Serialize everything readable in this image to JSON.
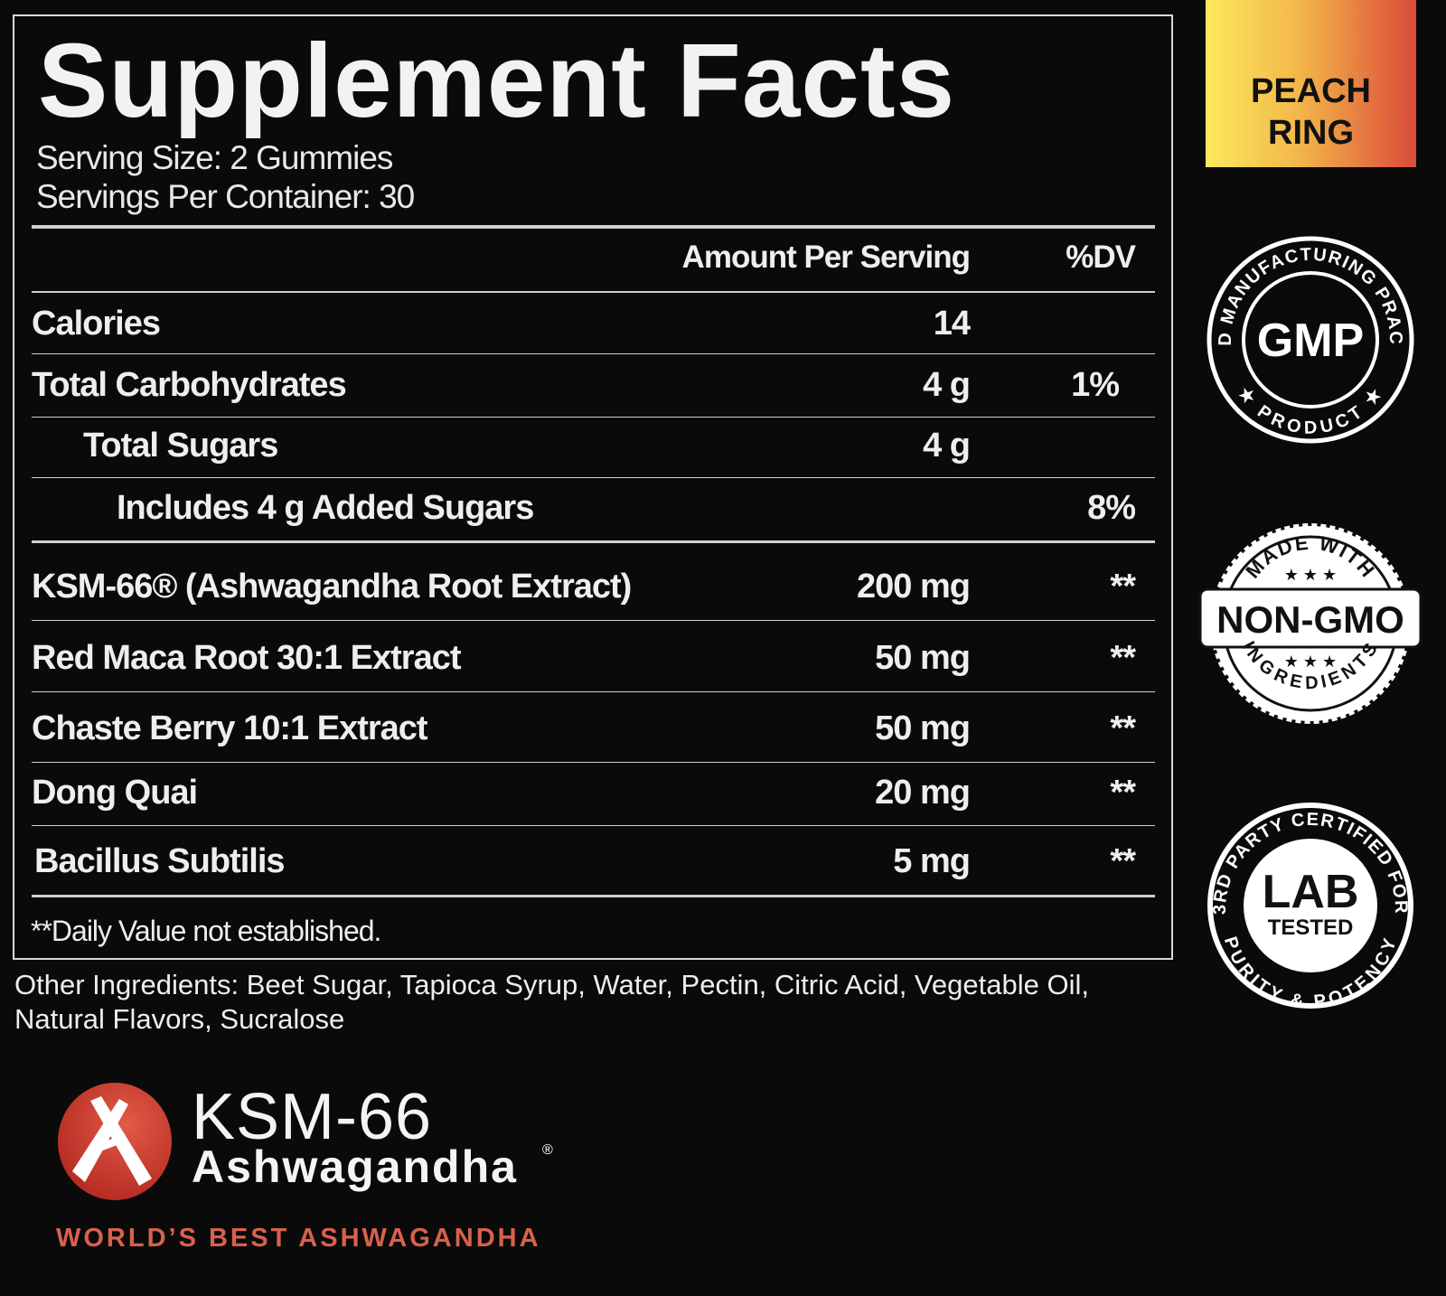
{
  "title": "Supplement Facts",
  "serving_size": "Serving Size: 2 Gummies",
  "servings_per_container": "Servings Per Container: 30",
  "header": {
    "amount": "Amount Per Serving",
    "dv": "%DV"
  },
  "rows": [
    {
      "label": "Calories",
      "amount": "14",
      "dv": ""
    },
    {
      "label": "Total Carbohydrates",
      "amount": "4 g",
      "dv": "1%"
    },
    {
      "label": "Total Sugars",
      "amount": "4 g",
      "dv": ""
    },
    {
      "label": "Includes 4 g Added Sugars",
      "amount": "",
      "dv": "8%"
    },
    {
      "label": "KSM-66® (Ashwagandha Root Extract)",
      "amount": "200 mg",
      "dv": "**"
    },
    {
      "label": "Red Maca Root 30:1 Extract",
      "amount": "50 mg",
      "dv": "**"
    },
    {
      "label": "Chaste Berry 10:1 Extract",
      "amount": "50 mg",
      "dv": "**"
    },
    {
      "label": "Dong Quai",
      "amount": "20 mg",
      "dv": "**"
    },
    {
      "label": "Bacillus Subtilis",
      "amount": "5 mg",
      "dv": "**"
    }
  ],
  "footnote": "**Daily Value not established.",
  "other_ingredients": [
    "Other Ingredients: Beet Sugar, Tapioca Syrup, Water, Pectin, Citric Acid, Vegetable Oil,",
    "Natural Flavors, Sucralose"
  ],
  "flavor": [
    "PEACH",
    "RING"
  ],
  "flavor_colors": [
    "#fde85c",
    "#d94c3a"
  ],
  "badges": {
    "gmp": {
      "center": "GMP",
      "top": "GOOD MANUFACTURING PRACTICE",
      "bottom": "★ PRODUCT ★"
    },
    "nongmo": {
      "center": "NON-GMO",
      "top": "MADE WITH",
      "bottom": "INGREDIENTS",
      "stars": "★ ★ ★"
    },
    "lab": {
      "center1": "LAB",
      "center2": "TESTED",
      "top": "3RD PARTY CERTIFIED FOR",
      "bottom": "PURITY & POTENCY"
    }
  },
  "brand": {
    "name": "KSM-66",
    "sub": "Ashwagandha",
    "reg": "®",
    "tagline": "WORLD’S BEST ASHWAGANDHA",
    "color": "#d9614c"
  }
}
